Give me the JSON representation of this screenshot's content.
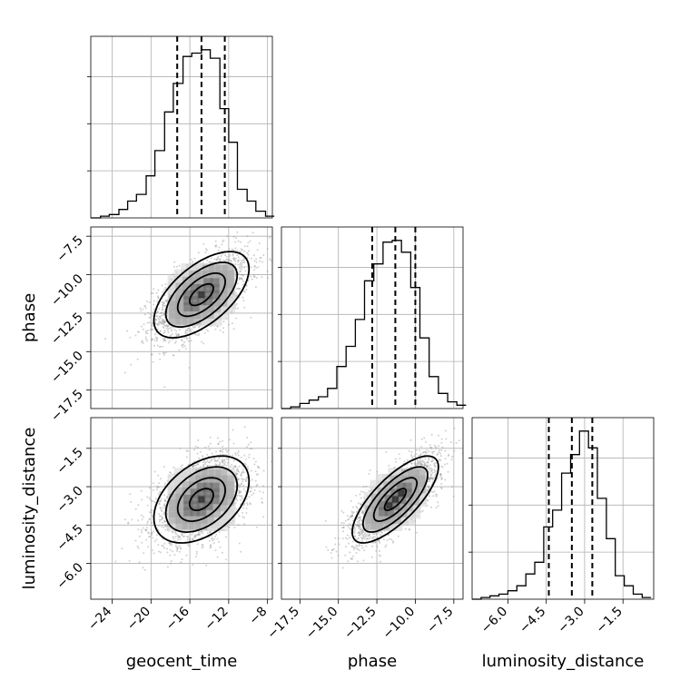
{
  "chart_data": {
    "type": "corner",
    "parameters": [
      "geocent_time",
      "phase",
      "luminosity_distance"
    ],
    "axis_labels": {
      "geocent_time": "geocent_time",
      "phase": "phase",
      "luminosity_distance": "luminosity_distance"
    },
    "ranges": {
      "geocent_time": [
        -26.2,
        -7.5
      ],
      "phase": [
        -18.7,
        -6.9
      ],
      "luminosity_distance": [
        -7.4,
        -0.3
      ]
    },
    "ticks": {
      "geocent_time": [
        {
          "value": -24,
          "label": "−24"
        },
        {
          "value": -20,
          "label": "−20"
        },
        {
          "value": -16,
          "label": "−16"
        },
        {
          "value": -12,
          "label": "−12"
        },
        {
          "value": -8,
          "label": "−8"
        }
      ],
      "phase": [
        {
          "value": -17.5,
          "label": "−17.5"
        },
        {
          "value": -15.0,
          "label": "−15.0"
        },
        {
          "value": -12.5,
          "label": "−12.5"
        },
        {
          "value": -10.0,
          "label": "−10.0"
        },
        {
          "value": -7.5,
          "label": "−7.5"
        }
      ],
      "luminosity_distance": [
        {
          "value": -6.0,
          "label": "−6.0"
        },
        {
          "value": -4.5,
          "label": "−4.5"
        },
        {
          "value": -3.0,
          "label": "−3.0"
        },
        {
          "value": -1.5,
          "label": "−1.5"
        }
      ]
    },
    "quantiles": {
      "geocent_time": [
        -17.3,
        -14.8,
        -12.4
      ],
      "phase": [
        -12.8,
        -11.3,
        -10.0
      ],
      "luminosity_distance": [
        -4.4,
        -3.5,
        -2.7
      ]
    },
    "histograms": {
      "geocent_time": {
        "bin_edges": [
          -26.2,
          -25.2,
          -24.3,
          -23.3,
          -22.4,
          -21.5,
          -20.5,
          -19.6,
          -18.6,
          -17.7,
          -16.7,
          -15.8,
          -14.8,
          -13.9,
          -12.9,
          -12.0,
          -11.1,
          -10.1,
          -9.2,
          -8.2,
          -7.3
        ],
        "counts": [
          0,
          0.01,
          0.02,
          0.05,
          0.1,
          0.14,
          0.25,
          0.4,
          0.63,
          0.8,
          0.96,
          0.98,
          1.0,
          0.95,
          0.65,
          0.45,
          0.17,
          0.1,
          0.04,
          0.01
        ]
      },
      "phase": {
        "bin_edges": [
          -18.7,
          -18.1,
          -17.5,
          -16.9,
          -16.3,
          -15.7,
          -15.1,
          -14.5,
          -13.9,
          -13.3,
          -12.7,
          -12.1,
          -11.5,
          -10.9,
          -10.3,
          -9.7,
          -9.1,
          -8.5,
          -7.9,
          -7.3,
          -6.7
        ],
        "counts": [
          0,
          0.01,
          0.03,
          0.05,
          0.07,
          0.12,
          0.25,
          0.37,
          0.53,
          0.76,
          0.86,
          0.99,
          1.0,
          0.93,
          0.72,
          0.42,
          0.19,
          0.09,
          0.04,
          0.02
        ]
      },
      "luminosity_distance": {
        "bin_edges": [
          -7.4,
          -7.05,
          -6.7,
          -6.35,
          -6.0,
          -5.65,
          -5.3,
          -4.95,
          -4.6,
          -4.25,
          -3.9,
          -3.55,
          -3.2,
          -2.85,
          -2.5,
          -2.15,
          -1.8,
          -1.45,
          -1.1,
          -0.75,
          -0.4
        ],
        "counts": [
          0,
          0.01,
          0.02,
          0.03,
          0.05,
          0.08,
          0.15,
          0.22,
          0.43,
          0.53,
          0.75,
          0.86,
          1.0,
          0.9,
          0.6,
          0.36,
          0.14,
          0.08,
          0.03,
          0.01
        ]
      }
    },
    "correlations": {
      "phase__geocent_time": 0.6,
      "luminosity_distance__geocent_time": 0.42,
      "luminosity_distance__phase": 0.75
    },
    "grid": true,
    "colors": {
      "samples": "#9a9a9a",
      "contours": "#000000",
      "quantiles": "#000000"
    }
  }
}
